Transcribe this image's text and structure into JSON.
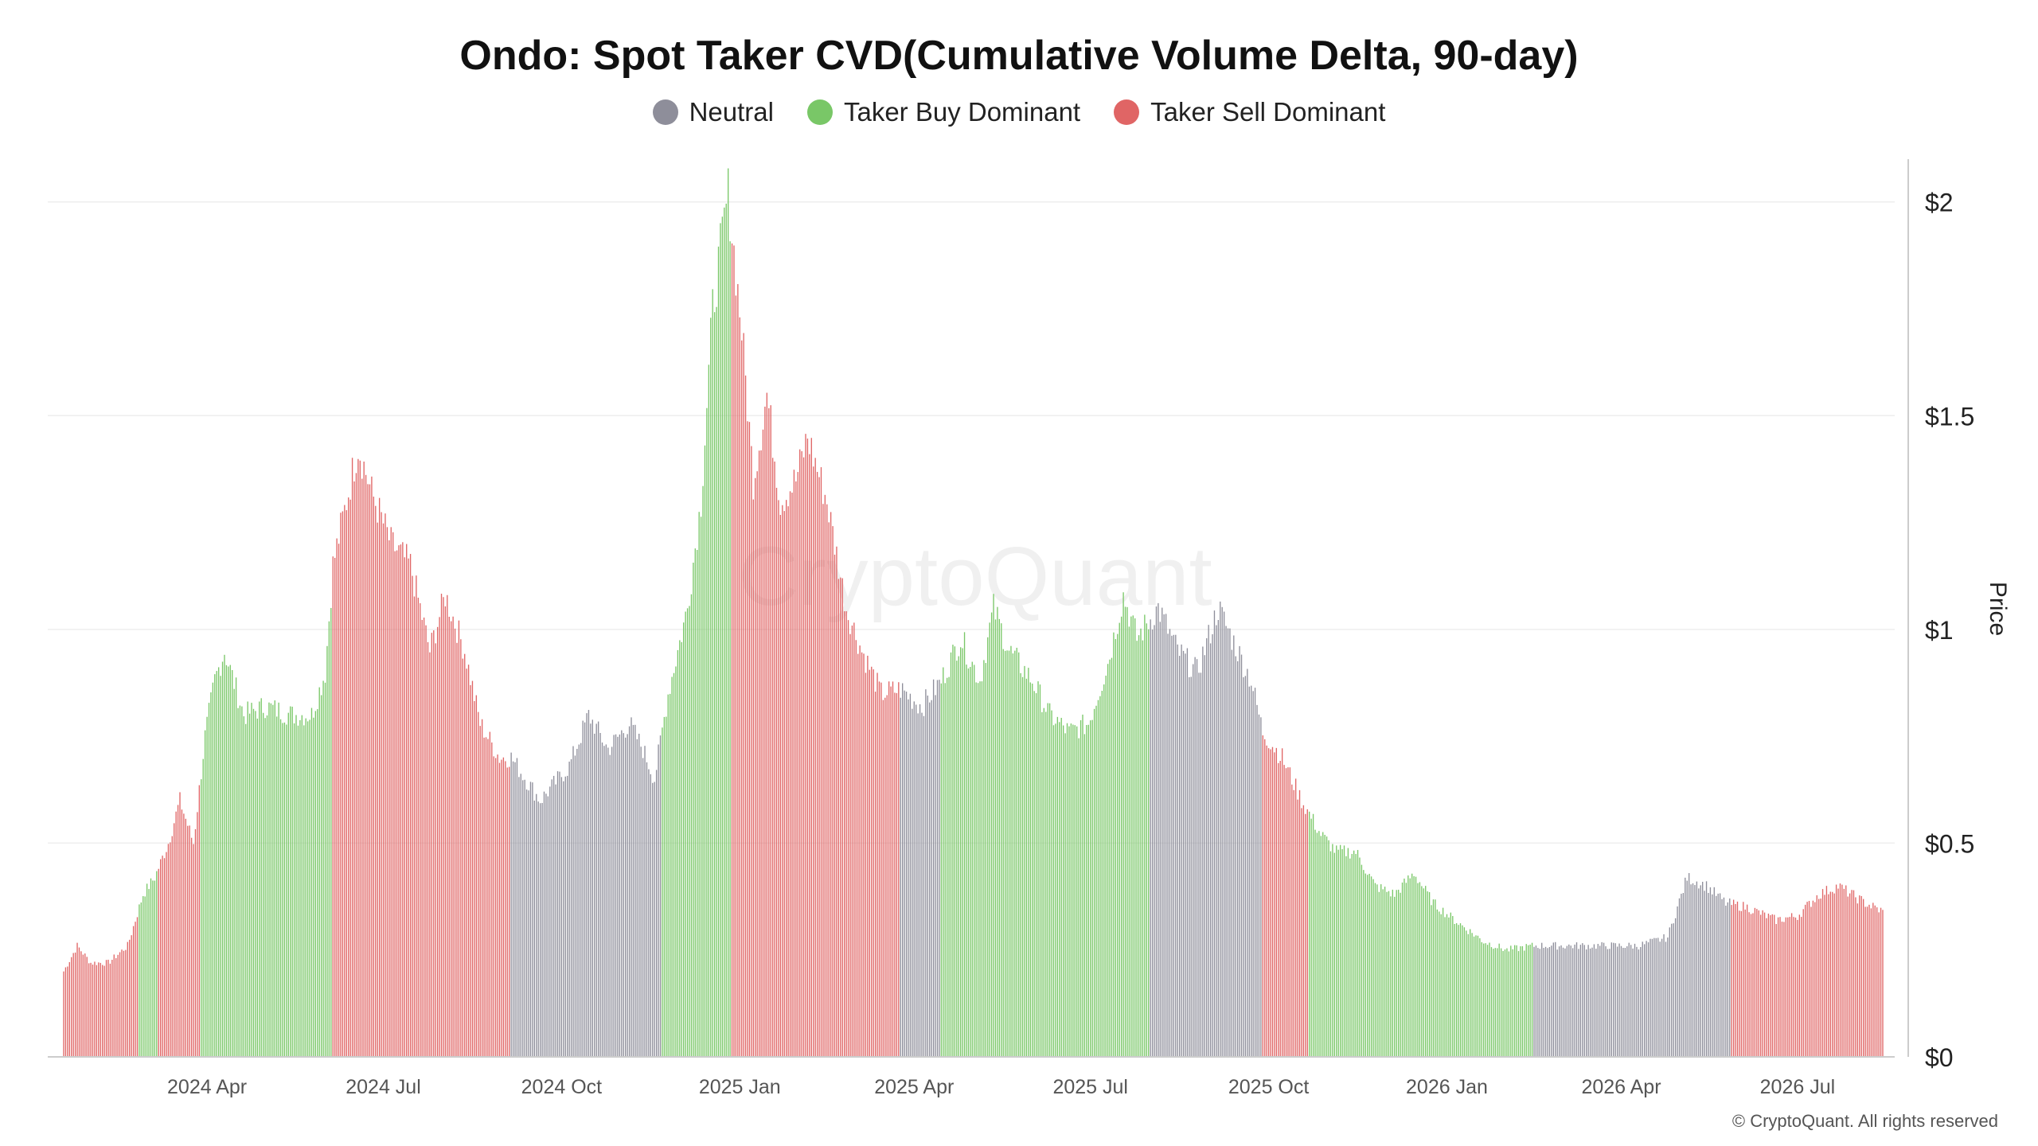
{
  "chart_data": {
    "type": "bar",
    "title": "Ondo: Spot Taker CVD(Cumulative Volume Delta, 90-day)",
    "ylabel": "Price",
    "ylim": [
      0,
      2.1
    ],
    "yticks": [
      0,
      0.5,
      1,
      1.5,
      2
    ],
    "ytick_labels": [
      "$0",
      "$0.5",
      "$1",
      "$1.5",
      "$2"
    ],
    "xrange": [
      "2024-01-18",
      "2026-08-14"
    ],
    "xticks": [
      {
        "date": "2024-04-01",
        "label": "2024 Apr"
      },
      {
        "date": "2024-07-01",
        "label": "2024 Jul"
      },
      {
        "date": "2024-10-01",
        "label": "2024 Oct"
      },
      {
        "date": "2025-01-01",
        "label": "2025 Jan"
      },
      {
        "date": "2025-04-01",
        "label": "2025 Apr"
      },
      {
        "date": "2025-07-01",
        "label": "2025 Jul"
      },
      {
        "date": "2025-10-01",
        "label": "2025 Oct"
      },
      {
        "date": "2026-01-01",
        "label": "2026 Jan"
      },
      {
        "date": "2026-04-01",
        "label": "2026 Apr"
      },
      {
        "date": "2026-07-01",
        "label": "2026 Jul"
      }
    ],
    "grid": true,
    "legend_position": "top-center",
    "series": [
      {
        "name": "Neutral",
        "color": "#8e8e9a"
      },
      {
        "name": "Taker Buy Dominant",
        "color": "#79c767"
      },
      {
        "name": "Taker Sell Dominant",
        "color": "#e06565"
      }
    ],
    "price_points": [
      [
        "2024-01-18",
        0.2
      ],
      [
        "2024-01-25",
        0.26
      ],
      [
        "2024-02-01",
        0.22
      ],
      [
        "2024-02-10",
        0.22
      ],
      [
        "2024-02-20",
        0.26
      ],
      [
        "2024-02-28",
        0.38
      ],
      [
        "2024-03-05",
        0.42
      ],
      [
        "2024-03-12",
        0.5
      ],
      [
        "2024-03-18",
        0.6
      ],
      [
        "2024-03-25",
        0.5
      ],
      [
        "2024-03-31",
        0.75
      ],
      [
        "2024-04-05",
        0.88
      ],
      [
        "2024-04-10",
        0.95
      ],
      [
        "2024-04-20",
        0.8
      ],
      [
        "2024-05-01",
        0.82
      ],
      [
        "2024-05-15",
        0.8
      ],
      [
        "2024-05-25",
        0.8
      ],
      [
        "2024-06-01",
        0.9
      ],
      [
        "2024-06-05",
        1.15
      ],
      [
        "2024-06-12",
        1.3
      ],
      [
        "2024-06-18",
        1.43
      ],
      [
        "2024-06-25",
        1.32
      ],
      [
        "2024-07-05",
        1.2
      ],
      [
        "2024-07-15",
        1.15
      ],
      [
        "2024-07-25",
        0.95
      ],
      [
        "2024-08-02",
        1.08
      ],
      [
        "2024-08-12",
        0.95
      ],
      [
        "2024-08-20",
        0.78
      ],
      [
        "2024-08-30",
        0.7
      ],
      [
        "2024-09-05",
        0.7
      ],
      [
        "2024-09-20",
        0.6
      ],
      [
        "2024-10-05",
        0.68
      ],
      [
        "2024-10-15",
        0.8
      ],
      [
        "2024-10-25",
        0.72
      ],
      [
        "2024-11-05",
        0.78
      ],
      [
        "2024-11-12",
        0.72
      ],
      [
        "2024-11-18",
        0.65
      ],
      [
        "2024-11-25",
        0.85
      ],
      [
        "2024-12-05",
        1.05
      ],
      [
        "2024-12-12",
        1.3
      ],
      [
        "2024-12-18",
        1.75
      ],
      [
        "2024-12-26",
        2.02
      ],
      [
        "2025-01-02",
        1.7
      ],
      [
        "2025-01-08",
        1.35
      ],
      [
        "2025-01-15",
        1.55
      ],
      [
        "2025-01-22",
        1.3
      ],
      [
        "2025-01-30",
        1.35
      ],
      [
        "2025-02-05",
        1.45
      ],
      [
        "2025-02-15",
        1.3
      ],
      [
        "2025-02-25",
        1.05
      ],
      [
        "2025-03-05",
        0.95
      ],
      [
        "2025-03-15",
        0.85
      ],
      [
        "2025-03-25",
        0.86
      ],
      [
        "2025-04-05",
        0.82
      ],
      [
        "2025-04-15",
        0.88
      ],
      [
        "2025-04-25",
        0.98
      ],
      [
        "2025-05-05",
        0.88
      ],
      [
        "2025-05-12",
        1.05
      ],
      [
        "2025-05-20",
        0.95
      ],
      [
        "2025-06-01",
        0.88
      ],
      [
        "2025-06-10",
        0.8
      ],
      [
        "2025-06-20",
        0.76
      ],
      [
        "2025-06-30",
        0.78
      ],
      [
        "2025-07-10",
        0.92
      ],
      [
        "2025-07-18",
        1.08
      ],
      [
        "2025-07-25",
        0.98
      ],
      [
        "2025-08-05",
        1.05
      ],
      [
        "2025-08-15",
        0.95
      ],
      [
        "2025-08-25",
        0.9
      ],
      [
        "2025-09-05",
        1.05
      ],
      [
        "2025-09-15",
        0.95
      ],
      [
        "2025-09-22",
        0.88
      ],
      [
        "2025-09-28",
        0.76
      ],
      [
        "2025-10-08",
        0.7
      ],
      [
        "2025-10-18",
        0.6
      ],
      [
        "2025-10-28",
        0.52
      ],
      [
        "2025-11-05",
        0.48
      ],
      [
        "2025-11-15",
        0.48
      ],
      [
        "2025-11-25",
        0.4
      ],
      [
        "2025-12-05",
        0.38
      ],
      [
        "2025-12-15",
        0.43
      ],
      [
        "2025-12-25",
        0.36
      ],
      [
        "2026-01-05",
        0.32
      ],
      [
        "2026-01-20",
        0.27
      ],
      [
        "2026-02-01",
        0.25
      ],
      [
        "2026-02-15",
        0.26
      ],
      [
        "2026-03-01",
        0.26
      ],
      [
        "2026-03-20",
        0.26
      ],
      [
        "2026-04-10",
        0.26
      ],
      [
        "2026-04-25",
        0.28
      ],
      [
        "2026-05-05",
        0.42
      ],
      [
        "2026-05-15",
        0.4
      ],
      [
        "2026-05-25",
        0.36
      ],
      [
        "2026-06-05",
        0.35
      ],
      [
        "2026-06-20",
        0.32
      ],
      [
        "2026-07-01",
        0.33
      ],
      [
        "2026-07-12",
        0.38
      ],
      [
        "2026-07-22",
        0.4
      ],
      [
        "2026-08-05",
        0.36
      ],
      [
        "2026-08-14",
        0.34
      ]
    ],
    "regimes": [
      {
        "start": "2024-01-18",
        "end": "2024-02-26",
        "series": "Taker Sell Dominant"
      },
      {
        "start": "2024-02-26",
        "end": "2024-03-07",
        "series": "Taker Buy Dominant"
      },
      {
        "start": "2024-03-07",
        "end": "2024-03-29",
        "series": "Taker Sell Dominant"
      },
      {
        "start": "2024-03-29",
        "end": "2024-06-05",
        "series": "Taker Buy Dominant"
      },
      {
        "start": "2024-06-05",
        "end": "2024-09-05",
        "series": "Taker Sell Dominant"
      },
      {
        "start": "2024-09-05",
        "end": "2024-11-22",
        "series": "Neutral"
      },
      {
        "start": "2024-11-22",
        "end": "2024-12-28",
        "series": "Taker Buy Dominant"
      },
      {
        "start": "2024-12-28",
        "end": "2025-03-25",
        "series": "Taker Sell Dominant"
      },
      {
        "start": "2025-03-25",
        "end": "2025-04-15",
        "series": "Neutral"
      },
      {
        "start": "2025-04-15",
        "end": "2025-08-01",
        "series": "Taker Buy Dominant"
      },
      {
        "start": "2025-08-01",
        "end": "2025-09-28",
        "series": "Neutral"
      },
      {
        "start": "2025-09-28",
        "end": "2025-10-22",
        "series": "Taker Sell Dominant"
      },
      {
        "start": "2025-10-22",
        "end": "2026-02-15",
        "series": "Taker Buy Dominant"
      },
      {
        "start": "2026-02-15",
        "end": "2026-05-28",
        "series": "Neutral"
      },
      {
        "start": "2026-05-28",
        "end": "2026-08-14",
        "series": "Taker Sell Dominant"
      }
    ],
    "watermark": "CryptoQuant",
    "copyright": "© CryptoQuant. All rights reserved"
  }
}
